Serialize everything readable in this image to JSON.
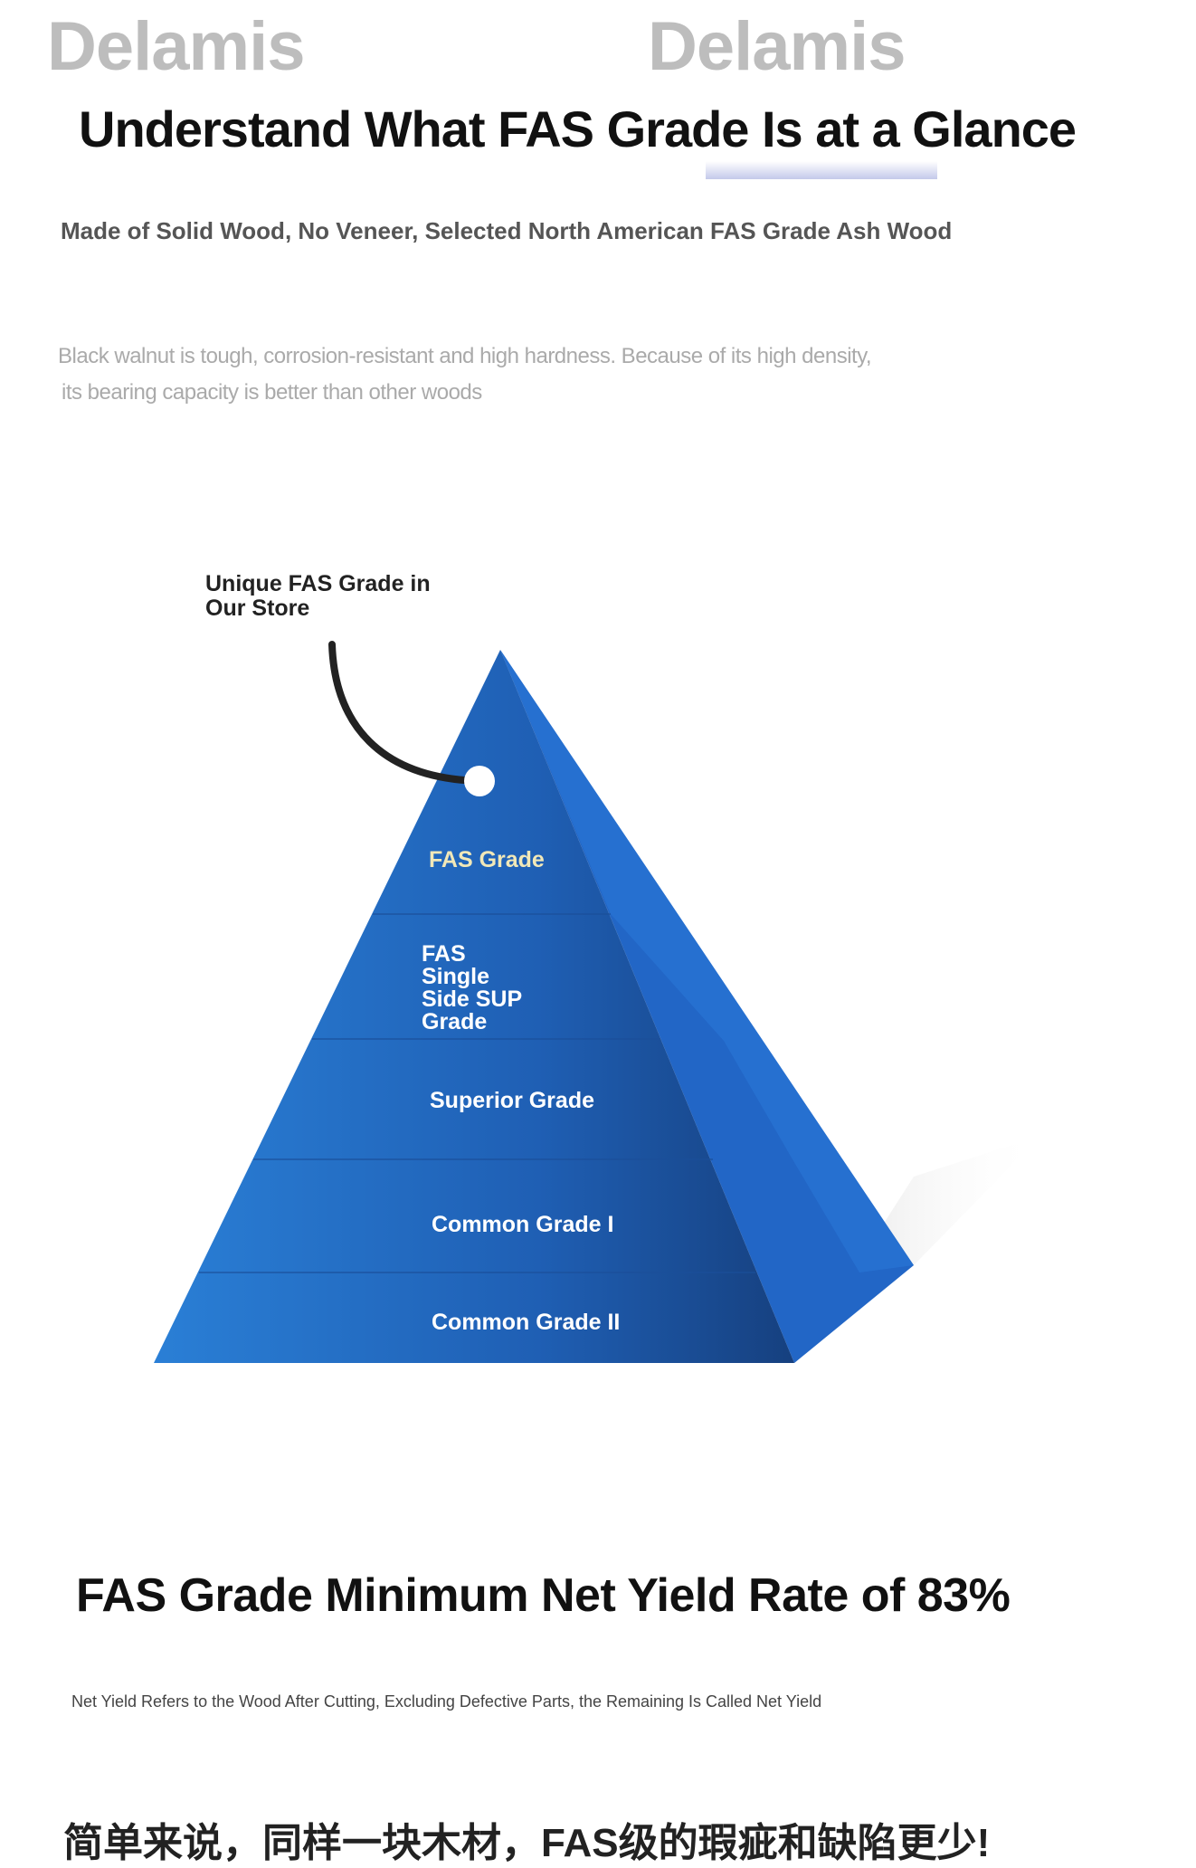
{
  "brand": {
    "logo_left": "Delamis",
    "logo_right": "Delamis"
  },
  "header": {
    "title": "Understand What FAS Grade Is at a Glance",
    "subtitle": "Made of Solid Wood, No Veneer, Selected North American FAS Grade Ash Wood",
    "description_line1": "Black walnut is tough, corrosion-resistant and high hardness. Because of its high density,",
    "description_line2": "its bearing capacity is better than other woods"
  },
  "pyramid": {
    "callout_line1": "Unique FAS Grade in",
    "callout_line2": "Our Store",
    "levels": [
      {
        "label": "FAS Grade",
        "color": "#f1e8b8"
      },
      {
        "label_lines": [
          "FAS",
          "Single",
          "Side SUP",
          "Grade"
        ]
      },
      {
        "label": "Superior Grade"
      },
      {
        "label": "Common Grade I"
      },
      {
        "label": "Common Grade II"
      }
    ],
    "colors": {
      "front_dark": "#1a4e9a",
      "front_light": "#2a7fd6",
      "side": "#2366c8"
    }
  },
  "yield": {
    "heading": "FAS Grade Minimum Net Yield Rate of 83%",
    "note": "Net Yield Refers to the Wood After Cutting, Excluding Defective Parts, the Remaining Is Called Net Yield",
    "chinese_line": "简单来说，同样一块木材，FAS级的瑕疵和缺陷更少!"
  }
}
